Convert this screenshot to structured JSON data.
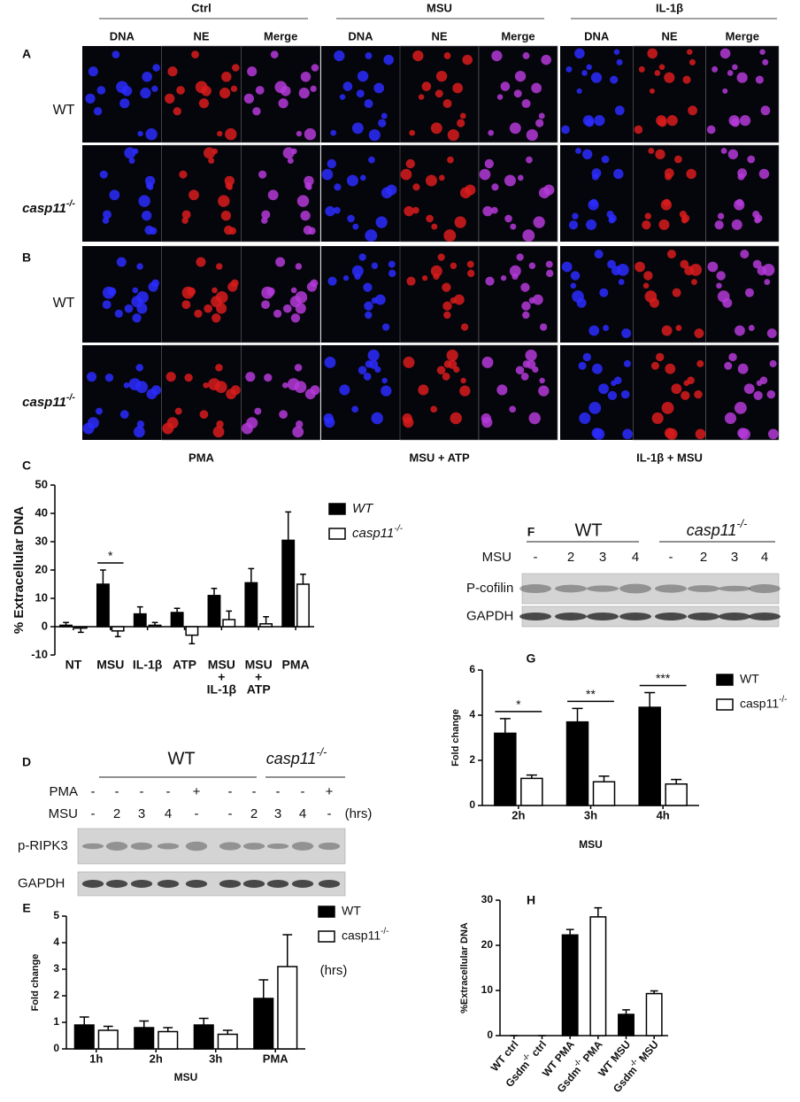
{
  "figure_a_b": {
    "panel_labels": [
      "A",
      "B"
    ],
    "groups": [
      "Ctrl",
      "MSU",
      "IL-1β"
    ],
    "channels": [
      "DNA",
      "NE",
      "Merge"
    ],
    "rows": [
      "WT",
      "casp11-/-",
      "WT",
      "casp11-/-"
    ],
    "treatments_b": [
      "PMA",
      "MSU + ATP",
      "IL-1β + MSU"
    ]
  },
  "blot_d": {
    "label": "D",
    "genotypes": [
      "WT",
      "casp11-/-"
    ],
    "rows": [
      {
        "name": "PMA",
        "lanes": [
          "-",
          "-",
          "-",
          "-",
          "+",
          "-",
          "-",
          "-",
          "-",
          "+"
        ]
      },
      {
        "name": "MSU",
        "lanes": [
          "-",
          "2",
          "3",
          "4",
          "-",
          "-",
          "2",
          "3",
          "4",
          "-"
        ]
      }
    ],
    "unit": "(hrs)",
    "bands": [
      "p-RIPK3",
      "GAPDH"
    ]
  },
  "blot_f": {
    "label": "F",
    "genotypes": [
      "WT",
      "casp11-/-"
    ],
    "rows": [
      {
        "name": "MSU",
        "lanes": [
          "-",
          "2",
          "3",
          "4",
          "-",
          "2",
          "3",
          "4"
        ]
      }
    ],
    "bands": [
      "P-cofilin",
      "GAPDH"
    ]
  },
  "chart_data": [
    {
      "type": "bar",
      "panel": "C",
      "ylabel": "% Extracellular DNA",
      "categories": [
        [
          "NT"
        ],
        [
          "MSU"
        ],
        [
          "IL-1β"
        ],
        [
          "ATP"
        ],
        [
          "MSU",
          "+",
          "IL-1β"
        ],
        [
          "MSU",
          "+",
          "ATP"
        ],
        [
          "PMA"
        ]
      ],
      "series": [
        {
          "name": "WT",
          "color": "#000000",
          "values": [
            0.5,
            15,
            4.5,
            5,
            11,
            15.5,
            30.5
          ],
          "errors": [
            1,
            5,
            2.5,
            1.5,
            2.5,
            5,
            10
          ]
        },
        {
          "name": "casp11-/-",
          "color": "#ffffff",
          "values": [
            -0.5,
            -1.5,
            0.5,
            -3,
            2.5,
            1,
            15
          ],
          "errors": [
            1.5,
            2,
            1,
            3,
            3,
            2.5,
            3.5
          ]
        }
      ],
      "annotations": [
        null,
        "*",
        null,
        null,
        null,
        null,
        null
      ],
      "ylim": [
        -10,
        50
      ],
      "yticks": [
        -10,
        0,
        10,
        20,
        30,
        40,
        50
      ]
    },
    {
      "type": "bar",
      "panel": "E",
      "ylabel": "Fold change",
      "xlabel": "MSU",
      "categories": [
        [
          "1h"
        ],
        [
          "2h"
        ],
        [
          "3h"
        ],
        [
          "PMA"
        ]
      ],
      "series": [
        {
          "name": "WT",
          "color": "#000000",
          "values": [
            0.9,
            0.8,
            0.9,
            1.9
          ],
          "errors": [
            0.3,
            0.25,
            0.25,
            0.7
          ]
        },
        {
          "name": "casp11-/-",
          "color": "#ffffff",
          "values": [
            0.7,
            0.65,
            0.55,
            3.1
          ],
          "errors": [
            0.15,
            0.15,
            0.15,
            1.2
          ]
        }
      ],
      "ylim": [
        0,
        5
      ],
      "yticks": [
        0,
        1,
        2,
        3,
        4,
        5
      ]
    },
    {
      "type": "bar",
      "panel": "G",
      "ylabel": "Fold change",
      "xlabel": "MSU",
      "categories": [
        [
          "2h"
        ],
        [
          "3h"
        ],
        [
          "4h"
        ]
      ],
      "series": [
        {
          "name": "WT",
          "color": "#000000",
          "values": [
            3.2,
            3.7,
            4.35
          ],
          "errors": [
            0.65,
            0.6,
            0.65
          ]
        },
        {
          "name": "casp11-/-",
          "color": "#ffffff",
          "values": [
            1.2,
            1.05,
            0.95
          ],
          "errors": [
            0.15,
            0.25,
            0.2
          ]
        }
      ],
      "annotations": [
        "*",
        "**",
        "***"
      ],
      "ylim": [
        0,
        6
      ],
      "yticks": [
        0,
        2,
        4,
        6
      ]
    },
    {
      "type": "bar",
      "panel": "H",
      "ylabel": "%Extracellular DNA",
      "categories": [
        [
          "WT ctrl"
        ],
        [
          "Gsdm-/- ctrl"
        ],
        [
          "WT PMA"
        ],
        [
          "Gsdm-/- PMA"
        ],
        [
          "WT MSU"
        ],
        [
          "Gsdm-/- MSU"
        ]
      ],
      "series": [
        {
          "colors": [
            "#000000",
            "#ffffff",
            "#000000",
            "#ffffff",
            "#000000",
            "#ffffff"
          ],
          "values": [
            0,
            0,
            22.3,
            26.3,
            4.7,
            9.3
          ],
          "errors": [
            0,
            0,
            1.2,
            2,
            1,
            0.6
          ]
        }
      ],
      "ylim": [
        0,
        30
      ],
      "yticks": [
        0,
        10,
        20,
        30
      ]
    }
  ]
}
